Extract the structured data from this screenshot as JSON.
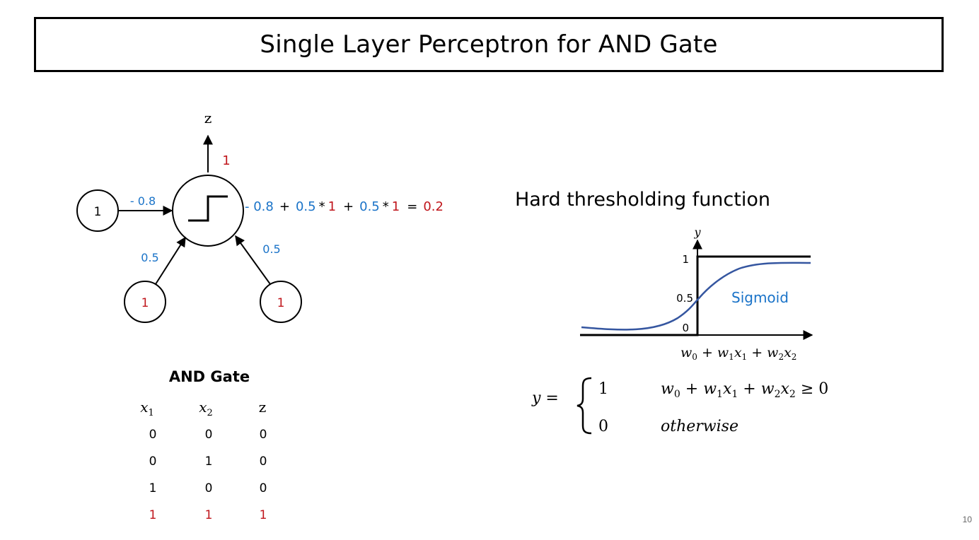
{
  "title": "Single Layer Perceptron for AND Gate",
  "slide_number": "10",
  "colors": {
    "weight": "#1a73c8",
    "input": "#c0161c",
    "curve": "#3556a0",
    "text": "#000000"
  },
  "perceptron": {
    "output_label": "z",
    "output_value": "1",
    "bias_node": "1",
    "bias_weight": "- 0.8",
    "input1_node": "1",
    "input1_weight": "0.5",
    "input2_node": "1",
    "input2_weight": "0.5",
    "unit_icon": "step-function-icon",
    "equation": {
      "bias": "- 0.8",
      "plus1": "+",
      "w1": "0.5",
      "times1": "*",
      "x1": "1",
      "plus2": "+",
      "w2": "0.5",
      "times2": "*",
      "x2": "1",
      "equals": "=",
      "result": "0.2"
    }
  },
  "and_gate": {
    "title": "AND Gate",
    "headers": {
      "x1_base": "x",
      "x1_sub": "1",
      "x2_base": "x",
      "x2_sub": "2",
      "z": "z"
    },
    "rows": [
      [
        "0",
        "0",
        "0"
      ],
      [
        "0",
        "1",
        "0"
      ],
      [
        "1",
        "0",
        "0"
      ],
      [
        "1",
        "1",
        "1"
      ]
    ]
  },
  "threshold": {
    "heading": "Hard thresholding function",
    "y_axis_label": "y",
    "tick_1": "1",
    "tick_05": "0.5",
    "tick_0": "0",
    "curve_label": "Sigmoid",
    "x_axis_label": {
      "w0": "w",
      "w0_sub": "0",
      "plus1": " + ",
      "w1": "w",
      "w1_sub": "1",
      "x1": "x",
      "x1_sub": "1",
      "plus2": " + ",
      "w2": "w",
      "w2_sub": "2",
      "x2": "x",
      "x2_sub": "2"
    },
    "piecewise": {
      "lhs": "y =",
      "case1_value": "1",
      "case1_cond": {
        "w0": "w",
        "w0_sub": "0",
        "plus1": " + ",
        "w1": "w",
        "w1_sub": "1",
        "x1": "x",
        "x1_sub": "1",
        "plus2": " + ",
        "w2": "w",
        "w2_sub": "2",
        "x2": "x",
        "x2_sub": "2",
        "ge": " ≥ 0"
      },
      "case2_value": "0",
      "case2_cond": "otherwise"
    }
  }
}
